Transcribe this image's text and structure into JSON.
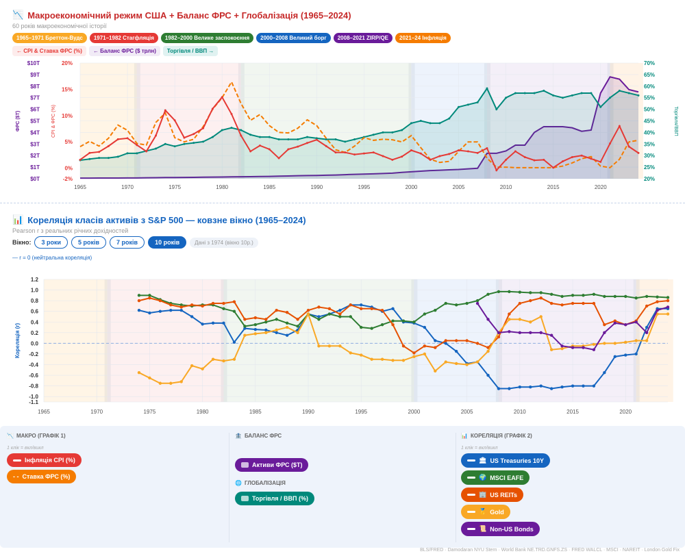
{
  "chart1": {
    "icon": "📉",
    "title": "Макроекономічний режим США + Баланс ФРС + Глобалізація (1965–2024)",
    "subtitle": "60 років макроекономічної історії",
    "regimes": [
      {
        "label": "1965–1971 Бреттон-Вудс",
        "color": "#f9a825",
        "from": 1965,
        "to": 1971,
        "bg": "#fff3e0"
      },
      {
        "label": "1971–1982 Стагфляція",
        "color": "#e53935",
        "from": 1971,
        "to": 1982,
        "bg": "#fdecec"
      },
      {
        "label": "1982–2000 Велике заспокоєння",
        "color": "#2e7d32",
        "from": 1982,
        "to": 2000,
        "bg": "#edf4ec"
      },
      {
        "label": "2000–2008 Великий борг",
        "color": "#1565c0",
        "from": 2000,
        "to": 2008,
        "bg": "#e9f0fb"
      },
      {
        "label": "2008–2021 ZIRP/QE",
        "color": "#6a1b9a",
        "from": 2008,
        "to": 2021,
        "bg": "#f1ebf6"
      },
      {
        "label": "2021–24 Інфляція",
        "color": "#f57c00",
        "from": 2021,
        "to": 2024.5,
        "bg": "#fff0e0"
      }
    ],
    "axis_tags": [
      {
        "label": "← CPI & Ставка ФРС (%)",
        "color": "#e53935",
        "bg": "#fdecec"
      },
      {
        "label": "← Баланс ФРС ($ трлн)",
        "color": "#6a1b9a",
        "bg": "#f1ebf6"
      },
      {
        "label": "Торгівля / ВВП →",
        "color": "#00897b",
        "bg": "#e0f2f1"
      }
    ]
  },
  "chart2": {
    "icon": "📊",
    "title": "Кореляція класів активів з S&P 500 — ковзне вікно (1965–2024)",
    "subtitle": "Pearson r з реальних річних дохідностей",
    "window_label": "Вікно:",
    "windows": [
      "3 роки",
      "5 років",
      "7 років",
      "10 років"
    ],
    "active_window": "10 років",
    "data_note": "Дані з 1974 (вікно 10р.)",
    "zero_note": "— r = 0 (нейтральна кореляція)"
  },
  "chart_data": [
    {
      "type": "line",
      "title": "Макроекономічний режим США",
      "x_start": 1965,
      "xlim": [
        1965,
        2024
      ],
      "x_ticks": [
        "1965",
        "1970",
        "1975",
        "1980",
        "1985",
        "1990",
        "1995",
        "2000",
        "2005",
        "2010",
        "2015",
        "2020"
      ],
      "y_left_label": "ФРС ($T)",
      "y_left_ticks": [
        "$0T",
        "$1T",
        "$2T",
        "$3T",
        "$4T",
        "$5T",
        "$6T",
        "$7T",
        "$8T",
        "$9T",
        "$10T"
      ],
      "y_left_lim": [
        0,
        10
      ],
      "y_pct_label": "CPI & ФРС (%)",
      "y_pct_ticks": [
        "-2%",
        "0%",
        "5%",
        "10%",
        "15%",
        "20%"
      ],
      "y_pct_lim": [
        -2,
        20
      ],
      "y_right_label": "Торгівля/ВВП",
      "y_right_ticks": [
        "20%",
        "25%",
        "30%",
        "35%",
        "40%",
        "45%",
        "50%",
        "55%",
        "60%",
        "65%",
        "70%"
      ],
      "y_right_lim": [
        20,
        70
      ],
      "series": [
        {
          "name": "Інфляція CPI (%)",
          "axis": "pct",
          "color": "#e53935",
          "dash": false,
          "values": [
            1.6,
            2.9,
            3.1,
            4.2,
            5.5,
            5.7,
            4.4,
            3.2,
            6.2,
            11.0,
            9.1,
            5.8,
            6.5,
            7.6,
            11.3,
            13.5,
            10.3,
            6.2,
            3.2,
            4.3,
            3.6,
            1.9,
            3.6,
            4.1,
            4.8,
            5.4,
            4.2,
            3.0,
            3.0,
            2.6,
            2.8,
            3.0,
            2.3,
            1.6,
            2.2,
            3.4,
            2.8,
            1.6,
            2.3,
            2.7,
            3.4,
            3.2,
            2.9,
            3.8,
            -0.4,
            1.6,
            3.2,
            2.1,
            1.5,
            1.6,
            0.1,
            1.3,
            2.1,
            2.4,
            1.8,
            1.2,
            4.7,
            8.0,
            4.1,
            2.9
          ]
        },
        {
          "name": "Ставка ФРС (%)",
          "axis": "pct",
          "color": "#f57c00",
          "dash": true,
          "values": [
            4.1,
            5.1,
            4.2,
            5.7,
            8.2,
            7.2,
            4.7,
            4.4,
            8.7,
            10.5,
            5.8,
            5.0,
            5.5,
            7.9,
            11.2,
            13.4,
            16.4,
            12.3,
            9.1,
            10.2,
            8.1,
            6.8,
            6.7,
            7.6,
            9.2,
            8.1,
            5.7,
            3.5,
            3.0,
            4.2,
            5.8,
            5.3,
            5.5,
            5.4,
            5.0,
            6.2,
            3.9,
            1.7,
            1.1,
            1.3,
            3.2,
            5.0,
            5.0,
            1.9,
            0.2,
            0.2,
            0.1,
            0.1,
            0.1,
            0.1,
            0.1,
            0.4,
            1.0,
            1.8,
            2.2,
            0.4,
            0.1,
            1.7,
            5.0,
            5.3
          ]
        },
        {
          "name": "Активи ФРС ($T)",
          "axis": "left",
          "color": "#6a1b9a",
          "dash": false,
          "fill": true,
          "values": [
            0.05,
            0.05,
            0.06,
            0.06,
            0.06,
            0.07,
            0.07,
            0.08,
            0.09,
            0.1,
            0.1,
            0.11,
            0.12,
            0.13,
            0.14,
            0.15,
            0.16,
            0.17,
            0.18,
            0.19,
            0.2,
            0.22,
            0.24,
            0.26,
            0.27,
            0.28,
            0.3,
            0.32,
            0.35,
            0.38,
            0.4,
            0.42,
            0.45,
            0.48,
            0.55,
            0.6,
            0.65,
            0.7,
            0.73,
            0.77,
            0.8,
            0.85,
            0.9,
            2.2,
            2.2,
            2.4,
            2.9,
            2.9,
            4.0,
            4.5,
            4.5,
            4.5,
            4.4,
            4.1,
            4.2,
            7.4,
            8.8,
            8.6,
            7.7,
            7.5
          ]
        },
        {
          "name": "Торгівля / ВВП (%)",
          "axis": "right",
          "color": "#00897b",
          "dash": false,
          "fill": true,
          "values": [
            28,
            28.5,
            29,
            29,
            29.5,
            31,
            31,
            32,
            33,
            35,
            34,
            35,
            35.5,
            36,
            38,
            41,
            42,
            41,
            39,
            38,
            38,
            37,
            37,
            37,
            38,
            37.5,
            37,
            37,
            36,
            37,
            38,
            39,
            40,
            40,
            41,
            44,
            45,
            44,
            44,
            46,
            51,
            52,
            53,
            59,
            50,
            55,
            57,
            57,
            57,
            58,
            56,
            55,
            56,
            57,
            57,
            51,
            55,
            58,
            57,
            56
          ]
        }
      ]
    },
    {
      "type": "line",
      "title": "Кореляція класів активів з S&P 500",
      "ylabel": "Кореляція (r)",
      "xlim": [
        1965,
        2024
      ],
      "ylim": [
        -1.1,
        1.2
      ],
      "x_ticks": [
        "1965",
        "1970",
        "1975",
        "1980",
        "1985",
        "1990",
        "1995",
        "2000",
        "2005",
        "2010",
        "2015",
        "2020"
      ],
      "y_ticks": [
        "1.2",
        "1.0",
        "0.8",
        "0.6",
        "0.4",
        "0.2",
        "0.0",
        "-0.2",
        "-0.4",
        "-0.6",
        "-0.8",
        "-1.0",
        "-1.1"
      ],
      "series": [
        {
          "name": "US Treasuries 10Y",
          "icon": "🏛",
          "color": "#1565c0",
          "x_start": 1974,
          "values": [
            0.62,
            0.57,
            0.6,
            0.62,
            0.62,
            0.5,
            0.36,
            0.38,
            0.38,
            0.02,
            0.28,
            0.26,
            0.25,
            0.2,
            0.15,
            0.25,
            0.55,
            0.5,
            0.55,
            0.62,
            0.72,
            0.72,
            0.68,
            0.6,
            0.65,
            0.4,
            0.38,
            0.3,
            0.05,
            0.0,
            -0.15,
            -0.38,
            -0.35,
            -0.6,
            -0.85,
            -0.85,
            -0.82,
            -0.82,
            -0.8,
            -0.85,
            -0.82,
            -0.8,
            -0.8,
            -0.8,
            -0.55,
            -0.25,
            -0.22,
            -0.2,
            0.3,
            0.65,
            0.65
          ]
        },
        {
          "name": "MSCI EAFE",
          "icon": "🌍",
          "color": "#2e7d32",
          "x_start": 1974,
          "values": [
            0.9,
            0.9,
            0.82,
            0.75,
            0.72,
            0.7,
            0.72,
            0.72,
            0.65,
            0.6,
            0.32,
            0.35,
            0.4,
            0.45,
            0.38,
            0.32,
            0.55,
            0.45,
            0.55,
            0.5,
            0.5,
            0.3,
            0.28,
            0.35,
            0.42,
            0.42,
            0.4,
            0.55,
            0.62,
            0.75,
            0.72,
            0.75,
            0.8,
            0.92,
            0.97,
            0.97,
            0.96,
            0.95,
            0.95,
            0.92,
            0.88,
            0.9,
            0.9,
            0.92,
            0.88,
            0.88,
            0.88,
            0.85,
            0.88,
            0.87,
            0.86
          ]
        },
        {
          "name": "US REITs",
          "icon": "🏢",
          "color": "#e65100",
          "x_start": 1974,
          "values": [
            0.8,
            0.85,
            0.8,
            0.72,
            0.68,
            0.72,
            0.7,
            0.75,
            0.75,
            0.78,
            0.45,
            0.48,
            0.45,
            0.62,
            0.58,
            0.45,
            0.62,
            0.68,
            0.65,
            0.55,
            0.72,
            0.65,
            0.65,
            0.62,
            0.35,
            -0.05,
            -0.18,
            -0.05,
            -0.08,
            0.05,
            0.05,
            0.05,
            0.0,
            -0.08,
            0.12,
            0.55,
            0.75,
            0.8,
            0.85,
            0.75,
            0.72,
            0.75,
            0.75,
            0.75,
            0.35,
            0.42,
            0.35,
            0.42,
            0.7,
            0.78,
            0.8
          ]
        },
        {
          "name": "Gold",
          "icon": "🥇",
          "color": "#f9a825",
          "x_start": 1974,
          "values": [
            -0.55,
            -0.65,
            -0.75,
            -0.75,
            -0.72,
            -0.42,
            -0.48,
            -0.3,
            -0.33,
            -0.3,
            0.15,
            0.18,
            0.2,
            0.25,
            0.3,
            0.2,
            0.55,
            -0.05,
            -0.05,
            -0.05,
            -0.18,
            -0.22,
            -0.3,
            -0.3,
            -0.32,
            -0.32,
            -0.25,
            -0.2,
            -0.52,
            -0.35,
            -0.38,
            -0.4,
            -0.35,
            -0.15,
            0.2,
            0.45,
            0.45,
            0.4,
            0.5,
            -0.12,
            -0.1,
            -0.05,
            -0.05,
            -0.02,
            0.0,
            0.0,
            0.02,
            0.05,
            0.05,
            0.55,
            0.55
          ]
        },
        {
          "name": "Non-US Bonds",
          "icon": "📜",
          "color": "#6a1b9a",
          "x_start": 2006,
          "values": [
            0.75,
            0.45,
            0.2,
            0.22,
            0.2,
            0.2,
            0.2,
            0.15,
            -0.05,
            -0.08,
            -0.08,
            -0.12,
            0.2,
            0.38,
            0.35,
            0.4,
            0.2,
            0.62,
            0.68
          ]
        }
      ]
    }
  ],
  "legend": {
    "macro": {
      "icon": "📉",
      "title": "МАКРО (ГРАФІК 1)",
      "hint": "1 клік = вкл/викл",
      "items": [
        {
          "label": "Інфляція CPI (%)",
          "color": "#e53935"
        },
        {
          "label": "Ставка ФРС (%)",
          "color": "#f57c00"
        }
      ]
    },
    "fed": {
      "icon": "🏦",
      "title": "БАЛАНС ФРС",
      "items": [
        {
          "label": "Активи ФРС ($T)",
          "color": "#6a1b9a"
        }
      ]
    },
    "glob": {
      "icon": "🌐",
      "title": "ГЛОБАЛІЗАЦІЯ",
      "items": [
        {
          "label": "Торгівля / ВВП (%)",
          "color": "#00897b"
        }
      ]
    },
    "corr": {
      "icon": "📊",
      "title": "КОРЕЛЯЦІЯ (ГРАФІК 2)",
      "hint": "1 клік = вкл/викл"
    }
  },
  "footer": "BLS/FRED · Damodaran NYU Stern · World Bank NE.TRD.GNFS.ZS · FRED WALCL · MSCI · NAREIT · London Gold Fix"
}
